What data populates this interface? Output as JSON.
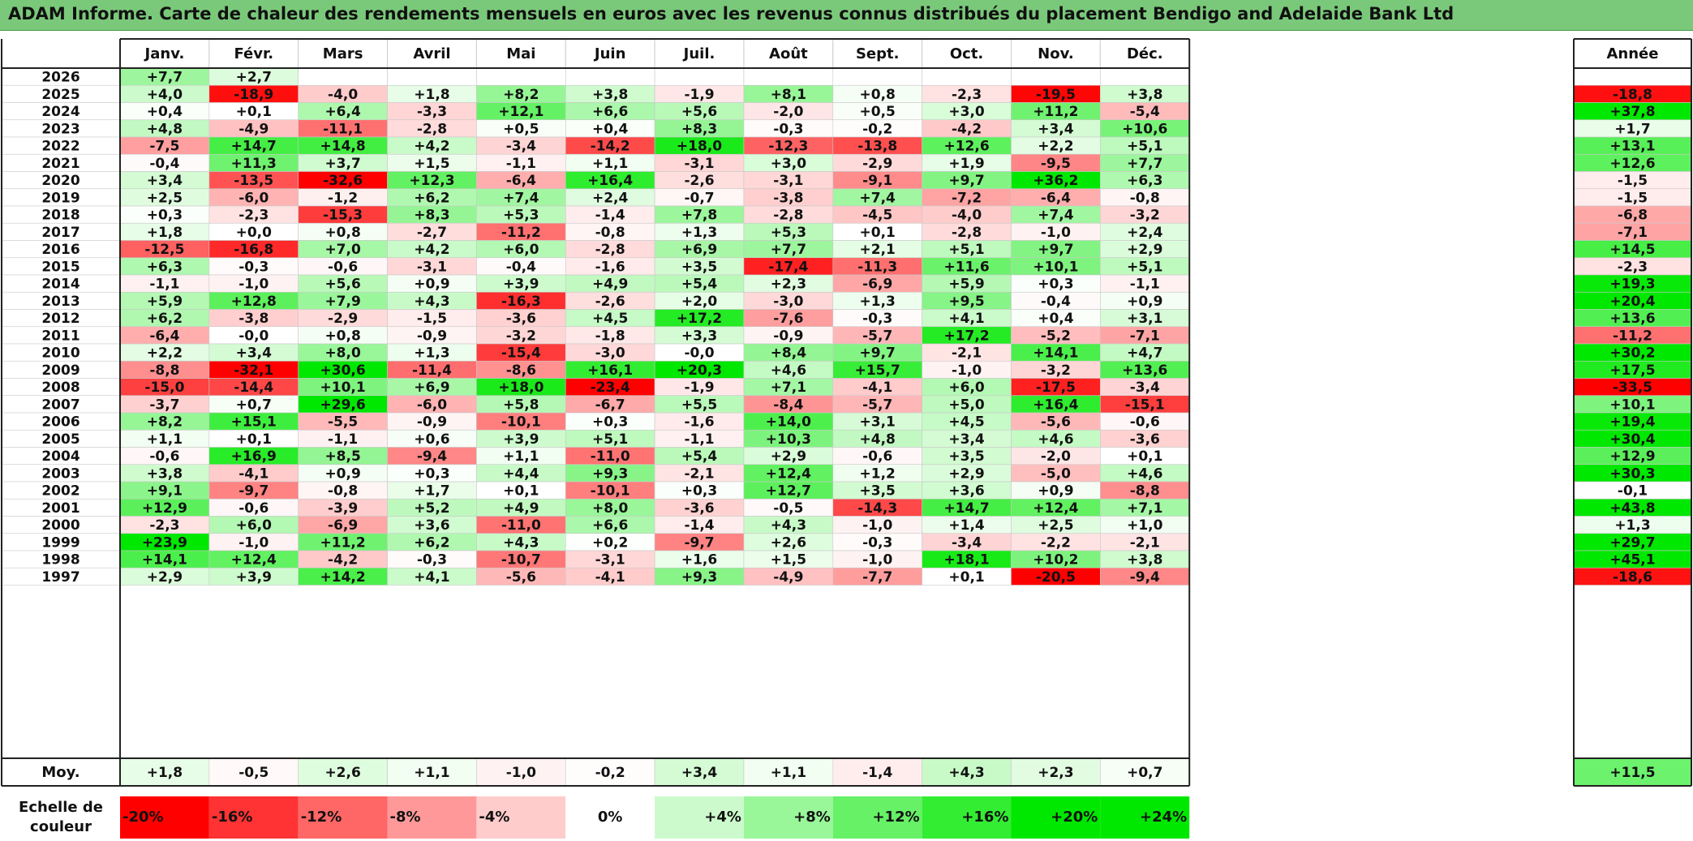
{
  "title": "ADAM Informe. Carte de chaleur des rendements mensuels en euros avec les revenus connus distribués du placement Bendigo and Adelaide Bank Ltd",
  "chart_data": {
    "type": "heatmap",
    "months": [
      "Janv.",
      "Févr.",
      "Mars",
      "Avril",
      "Mai",
      "Juin",
      "Juil.",
      "Août",
      "Sept.",
      "Oct.",
      "Nov.",
      "Déc."
    ],
    "year_header": "Année",
    "rows": [
      {
        "year": "2026",
        "values": [
          "+7,7",
          "+2,7",
          "",
          "",
          "",
          "",
          "",
          "",
          "",
          "",
          "",
          ""
        ],
        "annual": ""
      },
      {
        "year": "2025",
        "values": [
          "+4,0",
          "-18,9",
          "-4,0",
          "+1,8",
          "+8,2",
          "+3,8",
          "-1,9",
          "+8,1",
          "+0,8",
          "-2,3",
          "-19,5",
          "+3,8"
        ],
        "annual": "-18,8"
      },
      {
        "year": "2024",
        "values": [
          "+0,4",
          "+0,1",
          "+6,4",
          "-3,3",
          "+12,1",
          "+6,6",
          "+5,6",
          "-2,0",
          "+0,5",
          "+3,0",
          "+11,2",
          "-5,4"
        ],
        "annual": "+37,8"
      },
      {
        "year": "2023",
        "values": [
          "+4,8",
          "-4,9",
          "-11,1",
          "-2,8",
          "+0,5",
          "+0,4",
          "+8,3",
          "-0,3",
          "-0,2",
          "-4,2",
          "+3,4",
          "+10,6"
        ],
        "annual": "+1,7"
      },
      {
        "year": "2022",
        "values": [
          "-7,5",
          "+14,7",
          "+14,8",
          "+4,2",
          "-3,4",
          "-14,2",
          "+18,0",
          "-12,3",
          "-13,8",
          "+12,6",
          "+2,2",
          "+5,1"
        ],
        "annual": "+13,1"
      },
      {
        "year": "2021",
        "values": [
          "-0,4",
          "+11,3",
          "+3,7",
          "+1,5",
          "-1,1",
          "+1,1",
          "-3,1",
          "+3,0",
          "-2,9",
          "+1,9",
          "-9,5",
          "+7,7"
        ],
        "annual": "+12,6"
      },
      {
        "year": "2020",
        "values": [
          "+3,4",
          "-13,5",
          "-32,6",
          "+12,3",
          "-6,4",
          "+16,4",
          "-2,6",
          "-3,1",
          "-9,1",
          "+9,7",
          "+36,2",
          "+6,3"
        ],
        "annual": "-1,5"
      },
      {
        "year": "2019",
        "values": [
          "+2,5",
          "-6,0",
          "-1,2",
          "+6,2",
          "+7,4",
          "+2,4",
          "-0,7",
          "-3,8",
          "+7,4",
          "-7,2",
          "-6,4",
          "-0,8"
        ],
        "annual": "-1,5"
      },
      {
        "year": "2018",
        "values": [
          "+0,3",
          "-2,3",
          "-15,3",
          "+8,3",
          "+5,3",
          "-1,4",
          "+7,8",
          "-2,8",
          "-4,5",
          "-4,0",
          "+7,4",
          "-3,2"
        ],
        "annual": "-6,8"
      },
      {
        "year": "2017",
        "values": [
          "+1,8",
          "+0,0",
          "+0,8",
          "-2,7",
          "-11,2",
          "-0,8",
          "+1,3",
          "+5,3",
          "+0,1",
          "-2,8",
          "-1,0",
          "+2,4"
        ],
        "annual": "-7,1"
      },
      {
        "year": "2016",
        "values": [
          "-12,5",
          "-16,8",
          "+7,0",
          "+4,2",
          "+6,0",
          "-2,8",
          "+6,9",
          "+7,7",
          "+2,1",
          "+5,1",
          "+9,7",
          "+2,9"
        ],
        "annual": "+14,5"
      },
      {
        "year": "2015",
        "values": [
          "+6,3",
          "-0,3",
          "-0,6",
          "-3,1",
          "-0,4",
          "-1,6",
          "+3,5",
          "-17,4",
          "-11,3",
          "+11,6",
          "+10,1",
          "+5,1"
        ],
        "annual": "-2,3"
      },
      {
        "year": "2014",
        "values": [
          "-1,1",
          "-1,0",
          "+5,6",
          "+0,9",
          "+3,9",
          "+4,9",
          "+5,4",
          "+2,3",
          "-6,9",
          "+5,9",
          "+0,3",
          "-1,1"
        ],
        "annual": "+19,3"
      },
      {
        "year": "2013",
        "values": [
          "+5,9",
          "+12,8",
          "+7,9",
          "+4,3",
          "-16,3",
          "-2,6",
          "+2,0",
          "-3,0",
          "+1,3",
          "+9,5",
          "-0,4",
          "+0,9"
        ],
        "annual": "+20,4"
      },
      {
        "year": "2012",
        "values": [
          "+6,2",
          "-3,8",
          "-2,9",
          "-1,5",
          "-3,6",
          "+4,5",
          "+17,2",
          "-7,6",
          "-0,3",
          "+4,1",
          "+0,4",
          "+3,1"
        ],
        "annual": "+13,6"
      },
      {
        "year": "2011",
        "values": [
          "-6,4",
          "-0,0",
          "+0,8",
          "-0,9",
          "-3,2",
          "-1,8",
          "+3,3",
          "-0,9",
          "-5,7",
          "+17,2",
          "-5,2",
          "-7,1"
        ],
        "annual": "-11,2"
      },
      {
        "year": "2010",
        "values": [
          "+2,2",
          "+3,4",
          "+8,0",
          "+1,3",
          "-15,4",
          "-3,0",
          "-0,0",
          "+8,4",
          "+9,7",
          "-2,1",
          "+14,1",
          "+4,7"
        ],
        "annual": "+30,2"
      },
      {
        "year": "2009",
        "values": [
          "-8,8",
          "-32,1",
          "+30,6",
          "-11,4",
          "-8,6",
          "+16,1",
          "+20,3",
          "+4,6",
          "+15,7",
          "-1,0",
          "-3,2",
          "+13,6"
        ],
        "annual": "+17,5"
      },
      {
        "year": "2008",
        "values": [
          "-15,0",
          "-14,4",
          "+10,1",
          "+6,9",
          "+18,0",
          "-23,4",
          "-1,9",
          "+7,1",
          "-4,1",
          "+6,0",
          "-17,5",
          "-3,4"
        ],
        "annual": "-33,5"
      },
      {
        "year": "2007",
        "values": [
          "-3,7",
          "+0,7",
          "+29,6",
          "-6,0",
          "+5,8",
          "-6,7",
          "+5,5",
          "-8,4",
          "-5,7",
          "+5,0",
          "+16,4",
          "-15,1"
        ],
        "annual": "+10,1"
      },
      {
        "year": "2006",
        "values": [
          "+8,2",
          "+15,1",
          "-5,5",
          "-0,9",
          "-10,1",
          "+0,3",
          "-1,6",
          "+14,0",
          "+3,1",
          "+4,5",
          "-5,6",
          "-0,6"
        ],
        "annual": "+19,4"
      },
      {
        "year": "2005",
        "values": [
          "+1,1",
          "+0,1",
          "-1,1",
          "+0,6",
          "+3,9",
          "+5,1",
          "-1,1",
          "+10,3",
          "+4,8",
          "+3,4",
          "+4,6",
          "-3,6"
        ],
        "annual": "+30,4"
      },
      {
        "year": "2004",
        "values": [
          "-0,6",
          "+16,9",
          "+8,5",
          "-9,4",
          "+1,1",
          "-11,0",
          "+5,4",
          "+2,9",
          "-0,6",
          "+3,5",
          "-2,0",
          "+0,1"
        ],
        "annual": "+12,9"
      },
      {
        "year": "2003",
        "values": [
          "+3,8",
          "-4,1",
          "+0,9",
          "+0,3",
          "+4,4",
          "+9,3",
          "-2,1",
          "+12,4",
          "+1,2",
          "+2,9",
          "-5,0",
          "+4,6"
        ],
        "annual": "+30,3"
      },
      {
        "year": "2002",
        "values": [
          "+9,1",
          "-9,7",
          "-0,8",
          "+1,7",
          "+0,1",
          "-10,1",
          "+0,3",
          "+12,7",
          "+3,5",
          "+3,6",
          "+0,9",
          "-8,8"
        ],
        "annual": "-0,1"
      },
      {
        "year": "2001",
        "values": [
          "+12,9",
          "-0,6",
          "-3,9",
          "+5,2",
          "+4,9",
          "+8,0",
          "-3,6",
          "-0,5",
          "-14,3",
          "+14,7",
          "+12,4",
          "+7,1"
        ],
        "annual": "+43,8"
      },
      {
        "year": "2000",
        "values": [
          "-2,3",
          "+6,0",
          "-6,9",
          "+3,6",
          "-11,0",
          "+6,6",
          "-1,4",
          "+4,3",
          "-1,0",
          "+1,4",
          "+2,5",
          "+1,0"
        ],
        "annual": "+1,3"
      },
      {
        "year": "1999",
        "values": [
          "+23,9",
          "-1,0",
          "+11,2",
          "+6,2",
          "+4,3",
          "+0,2",
          "-9,7",
          "+2,6",
          "-0,3",
          "-3,4",
          "-2,2",
          "-2,1"
        ],
        "annual": "+29,7"
      },
      {
        "year": "1998",
        "values": [
          "+14,1",
          "+12,4",
          "-4,2",
          "-0,3",
          "-10,7",
          "-3,1",
          "+1,6",
          "+1,5",
          "-1,0",
          "+18,1",
          "+10,2",
          "+3,8"
        ],
        "annual": "+45,1"
      },
      {
        "year": "1997",
        "values": [
          "+2,9",
          "+3,9",
          "+14,2",
          "+4,1",
          "-5,6",
          "-4,1",
          "+9,3",
          "-4,9",
          "-7,7",
          "+0,1",
          "-20,5",
          "-9,4"
        ],
        "annual": "-18,6"
      }
    ],
    "average": {
      "label": "Moy.",
      "values": [
        "+1,8",
        "-0,5",
        "+2,6",
        "+1,1",
        "-1,0",
        "-0,2",
        "+3,4",
        "+1,1",
        "-1,4",
        "+4,3",
        "+2,3",
        "+0,7"
      ],
      "annual": "+11,5"
    },
    "color_scale": {
      "label_line1": "Echelle de",
      "label_line2": "couleur",
      "steps": [
        "-20%",
        "-16%",
        "-12%",
        "-8%",
        "-4%",
        "0%",
        "+4%",
        "+8%",
        "+12%",
        "+16%",
        "+20%",
        "+24%"
      ],
      "step_values": [
        -20,
        -16,
        -12,
        -8,
        -4,
        0,
        4,
        8,
        12,
        16,
        20,
        24
      ]
    },
    "colors": {
      "negative": "#ff0000",
      "zero": "#ffffff",
      "positive": "#00e400"
    }
  }
}
